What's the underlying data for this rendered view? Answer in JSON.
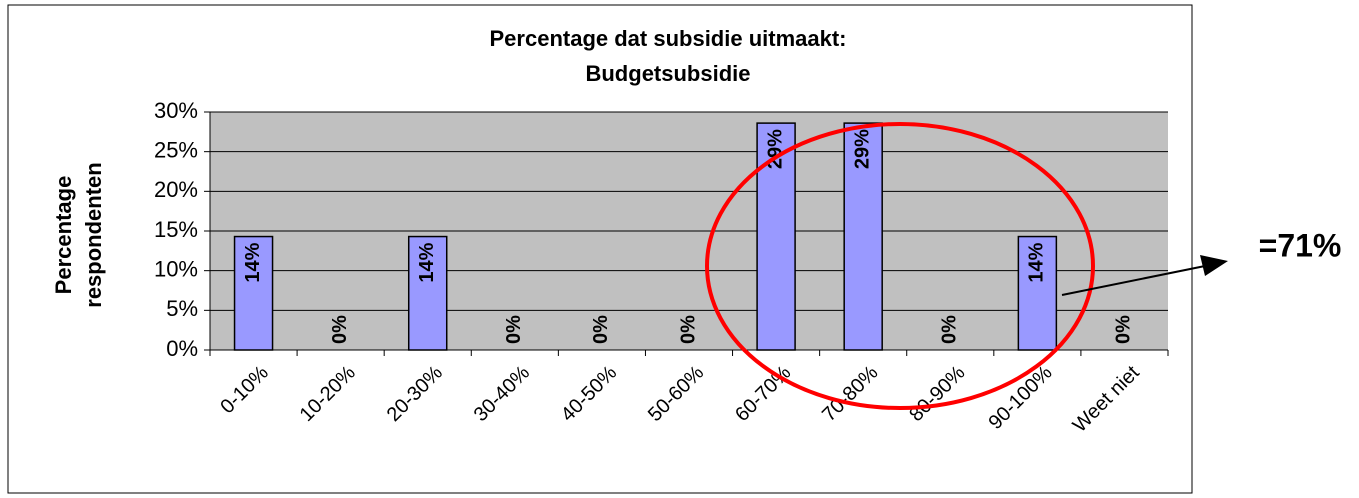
{
  "chart_data": {
    "type": "bar",
    "title": [
      "Percentage dat subsidie uitmaakt:",
      "Budgetsubsidie"
    ],
    "y_label": [
      "Percentage",
      "respondenten"
    ],
    "categories": [
      "0-10%",
      "10-20%",
      "20-30%",
      "30-40%",
      "40-50%",
      "50-60%",
      "60-70%",
      "70-80%",
      "80-90%",
      "90-100%",
      "Weet niet"
    ],
    "values": [
      14.3,
      0,
      14.3,
      0,
      0,
      0,
      28.6,
      28.6,
      0,
      14.3,
      0
    ],
    "value_labels": [
      "14%",
      "0%",
      "14%",
      "0%",
      "0%",
      "0%",
      "29%",
      "29%",
      "0%",
      "14%",
      "0%"
    ],
    "color": "#9999ff",
    "ylim": [
      0,
      30
    ],
    "yticks": [
      {
        "value": 0,
        "label": "0%"
      },
      {
        "value": 5,
        "label": "5%"
      },
      {
        "value": 10,
        "label": "10%"
      },
      {
        "value": 15,
        "label": "15%"
      },
      {
        "value": 20,
        "label": "20%"
      },
      {
        "value": 25,
        "label": "25%"
      },
      {
        "value": 30,
        "label": "30%"
      }
    ],
    "grid": true,
    "annotation": "=71%"
  }
}
